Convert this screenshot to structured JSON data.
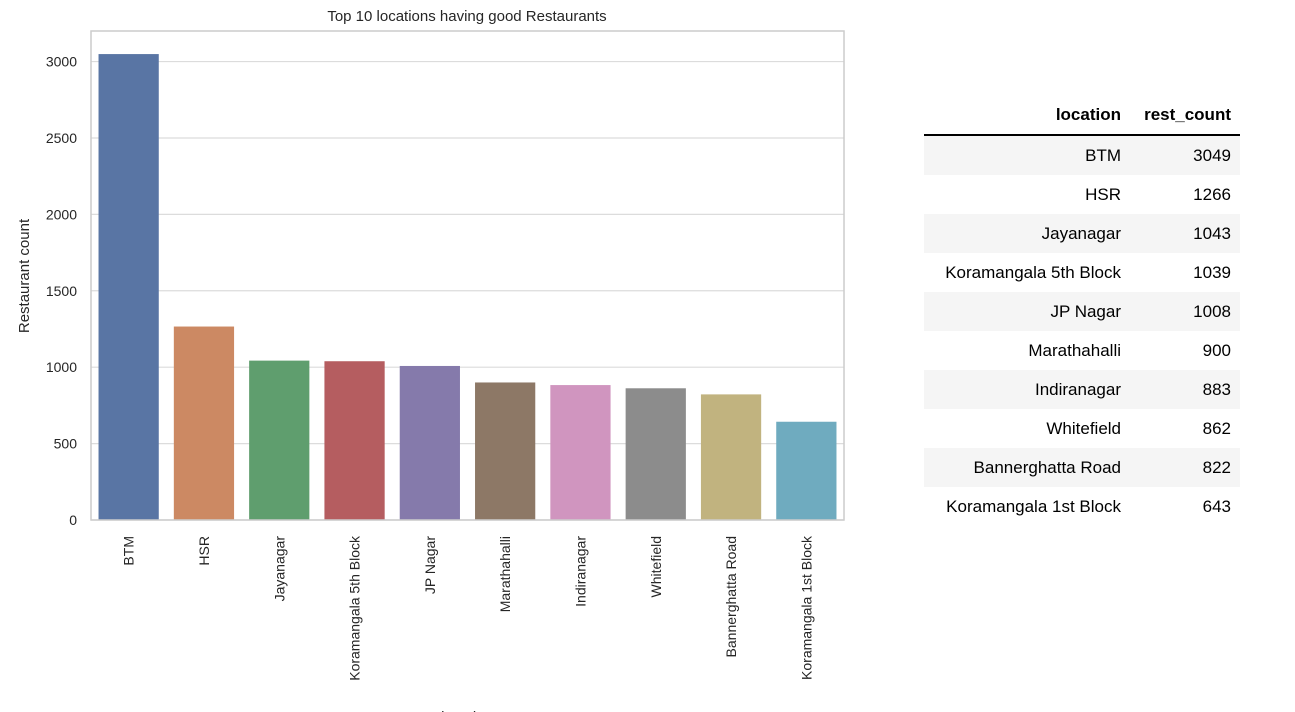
{
  "chart_data": {
    "type": "bar",
    "title": "Top 10 locations having good Restaurants",
    "xlabel": "location",
    "ylabel": "Restaurant count",
    "categories": [
      "BTM",
      "HSR",
      "Jayanagar",
      "Koramangala 5th Block",
      "JP Nagar",
      "Marathahalli",
      "Indiranagar",
      "Whitefield",
      "Bannerghatta Road",
      "Koramangala 1st Block"
    ],
    "values": [
      3049,
      1266,
      1043,
      1039,
      1008,
      900,
      883,
      862,
      822,
      643
    ],
    "colors": [
      "#5975a4",
      "#cc8963",
      "#5f9e6e",
      "#b55d60",
      "#857aab",
      "#8d7866",
      "#d095bf",
      "#8c8c8c",
      "#c1b37f",
      "#6fabbf"
    ],
    "ylim": [
      0,
      3200
    ],
    "yticks": [
      0,
      500,
      1000,
      1500,
      2000,
      2500,
      3000
    ],
    "grid": "horizontal",
    "legend": "none"
  },
  "table": {
    "headers": [
      "location",
      "rest_count"
    ],
    "rows": [
      [
        "BTM",
        "3049"
      ],
      [
        "HSR",
        "1266"
      ],
      [
        "Jayanagar",
        "1043"
      ],
      [
        "Koramangala 5th Block",
        "1039"
      ],
      [
        "JP Nagar",
        "1008"
      ],
      [
        "Marathahalli",
        "900"
      ],
      [
        "Indiranagar",
        "883"
      ],
      [
        "Whitefield",
        "862"
      ],
      [
        "Bannerghatta Road",
        "822"
      ],
      [
        "Koramangala 1st Block",
        "643"
      ]
    ]
  }
}
